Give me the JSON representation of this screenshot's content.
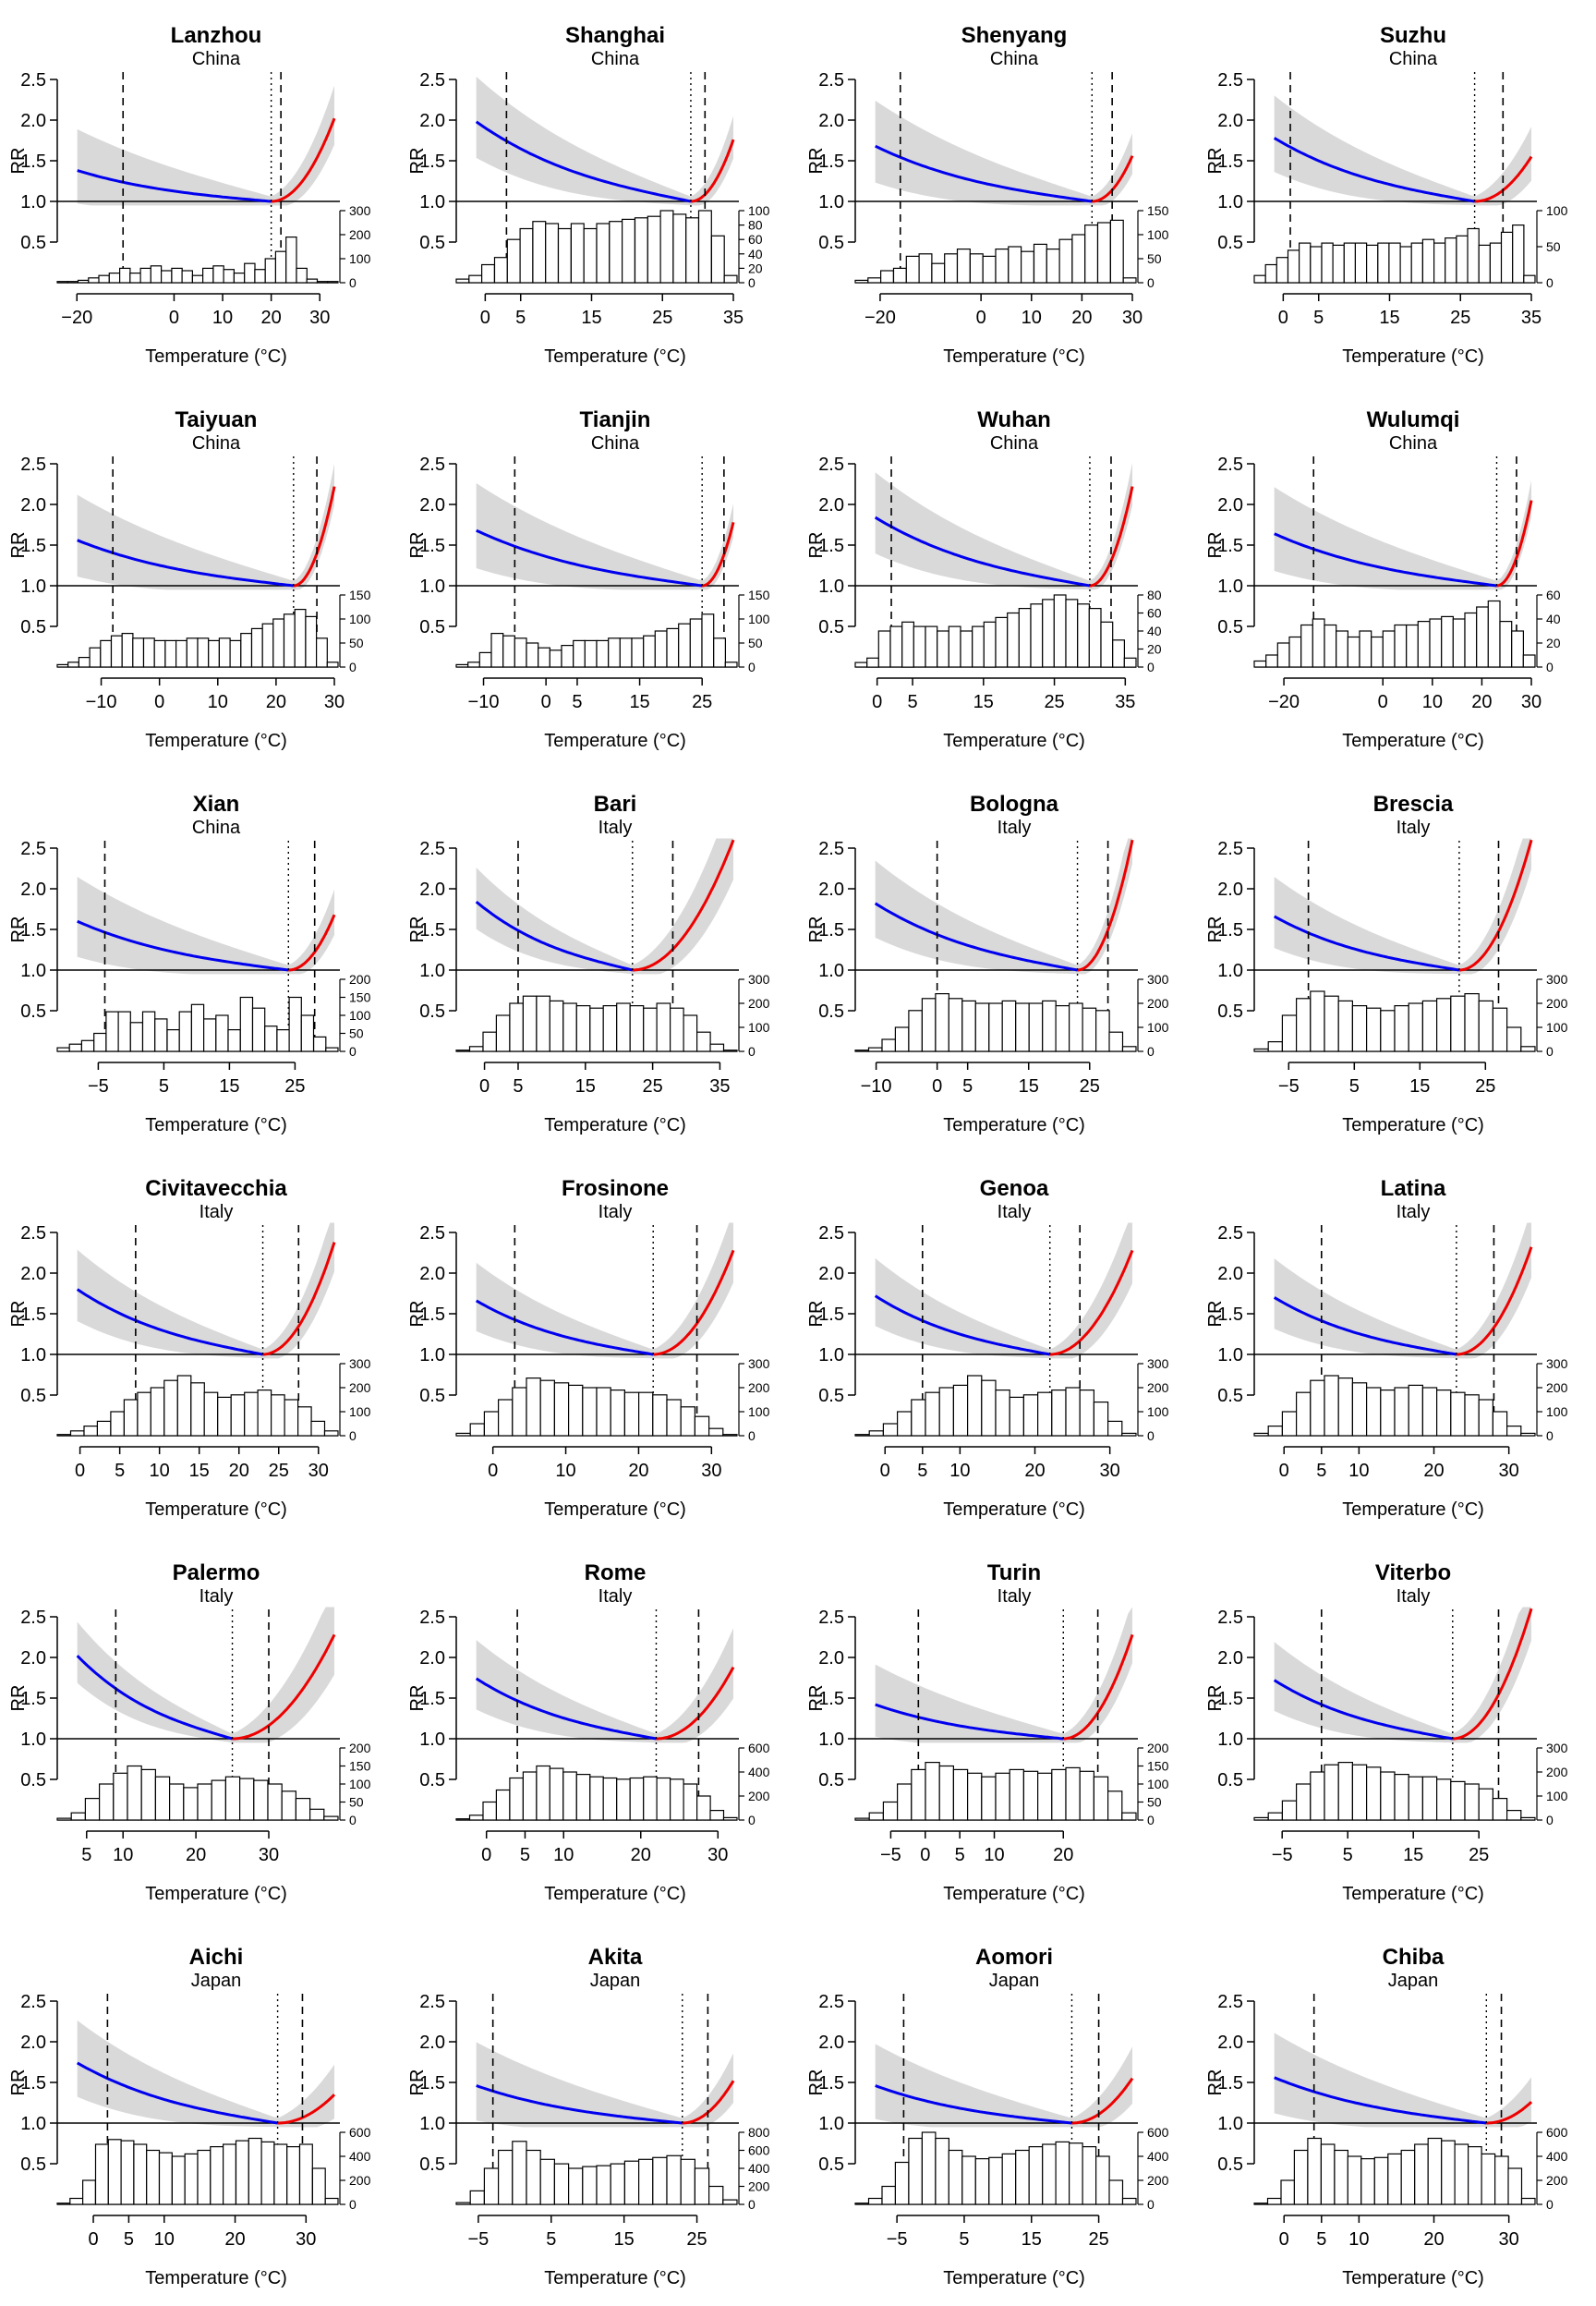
{
  "chart_data": [
    {
      "type": "line",
      "title": "Lanzhou",
      "subtitle": "China",
      "xticks": [
        -20,
        0,
        10,
        20,
        30
      ],
      "xlim": [
        -21,
        33
      ],
      "mmt": 20,
      "p_low": -10.5,
      "p_high": 22,
      "rr_cold": 1.38,
      "rr_hot": 2.02,
      "hist_ticks": [
        0,
        100,
        200,
        300
      ],
      "hist_max": 300,
      "hist_bins": [
        5,
        5,
        10,
        20,
        30,
        40,
        60,
        40,
        60,
        70,
        50,
        60,
        50,
        30,
        60,
        70,
        55,
        40,
        80,
        55,
        100,
        130,
        190,
        60,
        15,
        5,
        5
      ]
    },
    {
      "type": "line",
      "title": "Shanghai",
      "subtitle": "China",
      "xticks": [
        0,
        5,
        15,
        25,
        35
      ],
      "xlim": [
        -2,
        35
      ],
      "mmt": 29,
      "p_low": 3,
      "p_high": 31,
      "rr_cold": 1.98,
      "rr_hot": 1.76,
      "hist_ticks": [
        0,
        20,
        40,
        60,
        80,
        100
      ],
      "hist_max": 100,
      "hist_bins": [
        5,
        10,
        25,
        35,
        60,
        75,
        85,
        82,
        75,
        82,
        75,
        82,
        85,
        88,
        90,
        92,
        100,
        95,
        90,
        100,
        65,
        10
      ]
    },
    {
      "type": "line",
      "title": "Shenyang",
      "subtitle": "China",
      "xticks": [
        -20,
        0,
        10,
        20,
        30
      ],
      "xlim": [
        -22,
        30
      ],
      "mmt": 22,
      "p_low": -16,
      "p_high": 26,
      "rr_cold": 1.68,
      "rr_hot": 1.56,
      "hist_ticks": [
        0,
        50,
        100,
        150
      ],
      "hist_max": 150,
      "hist_bins": [
        5,
        10,
        25,
        30,
        55,
        60,
        40,
        60,
        70,
        60,
        55,
        70,
        75,
        65,
        80,
        70,
        90,
        100,
        120,
        125,
        130,
        10
      ]
    },
    {
      "type": "line",
      "title": "Suzhu",
      "subtitle": "China",
      "xticks": [
        0,
        5,
        15,
        25,
        35
      ],
      "xlim": [
        -2,
        35
      ],
      "mmt": 27,
      "p_low": 1,
      "p_high": 31,
      "rr_cold": 1.78,
      "rr_hot": 1.55,
      "hist_ticks": [
        0,
        50,
        100
      ],
      "hist_max": 100,
      "hist_bins": [
        10,
        25,
        35,
        45,
        55,
        50,
        55,
        52,
        55,
        55,
        52,
        55,
        55,
        50,
        55,
        60,
        55,
        62,
        65,
        75,
        52,
        55,
        70,
        80,
        10
      ]
    },
    {
      "type": "line",
      "title": "Taiyuan",
      "subtitle": "China",
      "xticks": [
        -10,
        0,
        10,
        20,
        30
      ],
      "xlim": [
        -15,
        30
      ],
      "mmt": 23,
      "p_low": -8,
      "p_high": 27,
      "rr_cold": 1.56,
      "rr_hot": 2.22,
      "hist_ticks": [
        0,
        50,
        100,
        150
      ],
      "hist_max": 150,
      "hist_bins": [
        5,
        10,
        20,
        40,
        55,
        65,
        70,
        60,
        60,
        55,
        55,
        55,
        60,
        60,
        55,
        60,
        55,
        70,
        80,
        90,
        100,
        110,
        120,
        105,
        60,
        10
      ]
    },
    {
      "type": "line",
      "title": "Tianjin",
      "subtitle": "China",
      "xticks": [
        -10,
        0,
        5,
        15,
        25
      ],
      "xlim": [
        -12,
        30
      ],
      "mmt": 25,
      "p_low": -5,
      "p_high": 28.5,
      "rr_cold": 1.68,
      "rr_hot": 1.78,
      "hist_ticks": [
        0,
        50,
        100,
        150
      ],
      "hist_max": 150,
      "hist_bins": [
        5,
        10,
        30,
        70,
        65,
        60,
        50,
        40,
        35,
        45,
        55,
        55,
        55,
        60,
        60,
        60,
        65,
        75,
        80,
        90,
        100,
        110,
        60,
        10
      ]
    },
    {
      "type": "line",
      "title": "Wuhan",
      "subtitle": "China",
      "xticks": [
        0,
        5,
        15,
        25,
        35
      ],
      "xlim": [
        -1,
        36
      ],
      "mmt": 30,
      "p_low": 2,
      "p_high": 33,
      "rr_cold": 1.84,
      "rr_hot": 2.22,
      "hist_ticks": [
        0,
        20,
        40,
        60,
        80
      ],
      "hist_max": 80,
      "hist_bins": [
        5,
        10,
        40,
        45,
        50,
        45,
        45,
        40,
        45,
        40,
        45,
        50,
        55,
        60,
        65,
        70,
        75,
        80,
        75,
        70,
        65,
        50,
        30,
        10
      ]
    },
    {
      "type": "line",
      "title": "Wulumqi",
      "subtitle": "China",
      "xticks": [
        -20,
        0,
        10,
        20,
        30
      ],
      "xlim": [
        -23,
        30
      ],
      "mmt": 23,
      "p_low": -14,
      "p_high": 27,
      "rr_cold": 1.64,
      "rr_hot": 2.05,
      "hist_ticks": [
        0,
        20,
        40,
        60
      ],
      "hist_max": 60,
      "hist_bins": [
        5,
        10,
        20,
        25,
        35,
        40,
        35,
        30,
        25,
        30,
        25,
        30,
        35,
        35,
        38,
        40,
        42,
        40,
        45,
        50,
        55,
        38,
        30,
        10
      ]
    },
    {
      "type": "line",
      "title": "Xian",
      "subtitle": "China",
      "xticks": [
        -5,
        5,
        15,
        25
      ],
      "xlim": [
        -9,
        31
      ],
      "mmt": 24,
      "p_low": -4,
      "p_high": 28,
      "rr_cold": 1.6,
      "rr_hot": 1.68,
      "hist_ticks": [
        0,
        50,
        100,
        150,
        200
      ],
      "hist_max": 200,
      "hist_bins": [
        10,
        20,
        30,
        50,
        110,
        110,
        80,
        110,
        90,
        60,
        110,
        130,
        90,
        100,
        60,
        150,
        120,
        70,
        60,
        150,
        100,
        40,
        10
      ]
    },
    {
      "type": "line",
      "title": "Bari",
      "subtitle": "Italy",
      "xticks": [
        0,
        5,
        15,
        25,
        35
      ],
      "xlim": [
        -2,
        37
      ],
      "mmt": 22,
      "p_low": 5,
      "p_high": 28,
      "rr_cold": 1.84,
      "rr_hot": 2.6,
      "hist_ticks": [
        0,
        100,
        200,
        300
      ],
      "hist_max": 300,
      "hist_bins": [
        5,
        20,
        80,
        150,
        200,
        230,
        230,
        210,
        200,
        190,
        180,
        190,
        200,
        190,
        180,
        200,
        180,
        150,
        80,
        30,
        5
      ]
    },
    {
      "type": "line",
      "title": "Bologna",
      "subtitle": "Italy",
      "xticks": [
        -10,
        0,
        5,
        15,
        25
      ],
      "xlim": [
        -11,
        32
      ],
      "mmt": 23,
      "p_low": 0,
      "p_high": 28,
      "rr_cold": 1.82,
      "rr_hot": 2.6,
      "hist_ticks": [
        0,
        100,
        200,
        300
      ],
      "hist_max": 300,
      "hist_bins": [
        5,
        15,
        50,
        100,
        170,
        220,
        240,
        220,
        210,
        200,
        200,
        210,
        200,
        200,
        210,
        190,
        200,
        180,
        170,
        80,
        20
      ]
    },
    {
      "type": "line",
      "title": "Brescia",
      "subtitle": "Italy",
      "xticks": [
        -5,
        5,
        15,
        25
      ],
      "xlim": [
        -8,
        32
      ],
      "mmt": 21,
      "p_low": -2,
      "p_high": 27,
      "rr_cold": 1.66,
      "rr_hot": 2.6,
      "hist_ticks": [
        0,
        100,
        200,
        300
      ],
      "hist_max": 300,
      "hist_bins": [
        10,
        40,
        150,
        220,
        250,
        230,
        210,
        190,
        180,
        170,
        190,
        200,
        210,
        220,
        230,
        240,
        210,
        180,
        100,
        20
      ]
    },
    {
      "type": "line",
      "title": "Civitavecchia",
      "subtitle": "Italy",
      "xticks": [
        0,
        5,
        10,
        15,
        20,
        25,
        30
      ],
      "xlim": [
        -1,
        32
      ],
      "mmt": 23,
      "p_low": 7,
      "p_high": 27.5,
      "rr_cold": 1.8,
      "rr_hot": 2.38,
      "hist_ticks": [
        0,
        100,
        200,
        300
      ],
      "hist_max": 300,
      "hist_bins": [
        5,
        20,
        40,
        60,
        100,
        150,
        180,
        200,
        230,
        250,
        220,
        180,
        160,
        170,
        180,
        190,
        170,
        150,
        120,
        60,
        20
      ]
    },
    {
      "type": "line",
      "title": "Frosinone",
      "subtitle": "Italy",
      "xticks": [
        0,
        10,
        20,
        30
      ],
      "xlim": [
        -3,
        33
      ],
      "mmt": 22,
      "p_low": 3,
      "p_high": 28,
      "rr_cold": 1.66,
      "rr_hot": 2.28,
      "hist_ticks": [
        0,
        100,
        200,
        300
      ],
      "hist_max": 300,
      "hist_bins": [
        10,
        50,
        100,
        150,
        200,
        240,
        230,
        220,
        210,
        200,
        200,
        190,
        180,
        180,
        170,
        150,
        120,
        80,
        30,
        5
      ]
    },
    {
      "type": "line",
      "title": "Genoa",
      "subtitle": "Italy",
      "xticks": [
        0,
        5,
        10,
        20,
        30
      ],
      "xlim": [
        -2,
        33
      ],
      "mmt": 22,
      "p_low": 5,
      "p_high": 26,
      "rr_cold": 1.72,
      "rr_hot": 2.28,
      "hist_ticks": [
        0,
        100,
        200,
        300
      ],
      "hist_max": 300,
      "hist_bins": [
        5,
        20,
        50,
        100,
        150,
        180,
        200,
        210,
        250,
        230,
        190,
        160,
        170,
        180,
        190,
        200,
        190,
        140,
        60,
        10
      ]
    },
    {
      "type": "line",
      "title": "Latina",
      "subtitle": "Italy",
      "xticks": [
        0,
        5,
        10,
        20,
        30
      ],
      "xlim": [
        -2,
        33
      ],
      "mmt": 23,
      "p_low": 5,
      "p_high": 28,
      "rr_cold": 1.7,
      "rr_hot": 2.32,
      "hist_ticks": [
        0,
        100,
        200,
        300
      ],
      "hist_max": 300,
      "hist_bins": [
        10,
        40,
        100,
        180,
        230,
        250,
        240,
        220,
        200,
        190,
        200,
        210,
        200,
        190,
        180,
        170,
        150,
        100,
        40,
        10
      ]
    },
    {
      "type": "line",
      "title": "Palermo",
      "subtitle": "Italy",
      "xticks": [
        5,
        10,
        20,
        30
      ],
      "xlim": [
        3,
        39
      ],
      "mmt": 25,
      "p_low": 9,
      "p_high": 30,
      "rr_cold": 2.02,
      "rr_hot": 2.28,
      "hist_ticks": [
        0,
        50,
        100,
        150,
        200
      ],
      "hist_max": 200,
      "hist_bins": [
        5,
        20,
        60,
        100,
        130,
        150,
        140,
        120,
        100,
        90,
        100,
        110,
        120,
        115,
        110,
        100,
        80,
        60,
        30,
        10
      ]
    },
    {
      "type": "line",
      "title": "Rome",
      "subtitle": "Italy",
      "xticks": [
        0,
        5,
        10,
        20,
        30
      ],
      "xlim": [
        -2,
        32
      ],
      "mmt": 22,
      "p_low": 4,
      "p_high": 27.5,
      "rr_cold": 1.74,
      "rr_hot": 1.88,
      "hist_ticks": [
        0,
        200,
        400,
        600
      ],
      "hist_max": 600,
      "hist_bins": [
        10,
        40,
        150,
        250,
        350,
        400,
        450,
        430,
        400,
        380,
        360,
        350,
        340,
        350,
        360,
        350,
        340,
        300,
        200,
        80,
        20
      ]
    },
    {
      "type": "line",
      "title": "Turin",
      "subtitle": "Italy",
      "xticks": [
        -5,
        0,
        5,
        10,
        20
      ],
      "xlim": [
        -8,
        30
      ],
      "mmt": 20,
      "p_low": -1,
      "p_high": 25,
      "rr_cold": 1.42,
      "rr_hot": 2.28,
      "hist_ticks": [
        0,
        50,
        100,
        150,
        200
      ],
      "hist_max": 200,
      "hist_bins": [
        5,
        20,
        50,
        100,
        140,
        160,
        150,
        140,
        130,
        120,
        130,
        140,
        135,
        130,
        140,
        145,
        135,
        120,
        80,
        20
      ]
    },
    {
      "type": "line",
      "title": "Viterbo",
      "subtitle": "Italy",
      "xticks": [
        -5,
        5,
        15,
        25
      ],
      "xlim": [
        -7,
        33
      ],
      "mmt": 21,
      "p_low": 1,
      "p_high": 28,
      "rr_cold": 1.72,
      "rr_hot": 2.6,
      "hist_ticks": [
        0,
        100,
        200,
        300
      ],
      "hist_max": 300,
      "hist_bins": [
        10,
        30,
        80,
        150,
        200,
        230,
        240,
        230,
        220,
        200,
        190,
        180,
        180,
        170,
        160,
        150,
        130,
        90,
        40,
        10
      ]
    },
    {
      "type": "line",
      "title": "Aichi",
      "subtitle": "Japan",
      "xticks": [
        0,
        5,
        10,
        20,
        30
      ],
      "xlim": [
        -3,
        34
      ],
      "mmt": 26,
      "p_low": 2,
      "p_high": 29.5,
      "rr_cold": 1.74,
      "rr_hot": 1.35,
      "hist_ticks": [
        0,
        200,
        400,
        600
      ],
      "hist_max": 600,
      "hist_bins": [
        10,
        50,
        200,
        500,
        540,
        530,
        500,
        450,
        430,
        400,
        420,
        450,
        480,
        500,
        530,
        550,
        520,
        500,
        480,
        500,
        300,
        50
      ]
    },
    {
      "type": "line",
      "title": "Akita",
      "subtitle": "Japan",
      "xticks": [
        -5,
        5,
        15,
        25
      ],
      "xlim": [
        -6,
        30
      ],
      "mmt": 23,
      "p_low": -3,
      "p_high": 26.5,
      "rr_cold": 1.46,
      "rr_hot": 1.52,
      "hist_ticks": [
        0,
        200,
        400,
        600,
        800
      ],
      "hist_max": 800,
      "hist_bins": [
        20,
        150,
        400,
        600,
        700,
        600,
        500,
        450,
        400,
        420,
        430,
        450,
        480,
        500,
        520,
        540,
        500,
        400,
        200,
        50
      ]
    },
    {
      "type": "line",
      "title": "Aomori",
      "subtitle": "Japan",
      "xticks": [
        -5,
        5,
        15,
        25
      ],
      "xlim": [
        -9,
        30
      ],
      "mmt": 21,
      "p_low": -4,
      "p_high": 25,
      "rr_cold": 1.46,
      "rr_hot": 1.55,
      "hist_ticks": [
        0,
        200,
        400,
        600
      ],
      "hist_max": 600,
      "hist_bins": [
        10,
        50,
        150,
        350,
        550,
        600,
        550,
        450,
        400,
        380,
        390,
        420,
        450,
        480,
        500,
        520,
        510,
        480,
        400,
        200,
        50
      ]
    },
    {
      "type": "line",
      "title": "Chiba",
      "subtitle": "Japan",
      "xticks": [
        0,
        5,
        10,
        20,
        30
      ],
      "xlim": [
        -2,
        33
      ],
      "mmt": 27,
      "p_low": 4,
      "p_high": 29,
      "rr_cold": 1.56,
      "rr_hot": 1.26,
      "hist_ticks": [
        0,
        200,
        400,
        600
      ],
      "hist_max": 600,
      "hist_bins": [
        10,
        50,
        200,
        450,
        550,
        500,
        450,
        400,
        380,
        390,
        420,
        450,
        500,
        550,
        530,
        500,
        480,
        420,
        400,
        300,
        50
      ]
    }
  ],
  "shared": {
    "ylabel": "RR",
    "xlabel": "Temperature (°C)",
    "yticks": [
      "0.5",
      "1.0",
      "1.5",
      "2.0",
      "2.5"
    ],
    "colors": {
      "cold_curve": "#0000ee",
      "hot_curve": "#ee0000",
      "ci_band": "#d9d9d9",
      "axis": "#000000",
      "bars_fill": "#ffffff"
    }
  }
}
